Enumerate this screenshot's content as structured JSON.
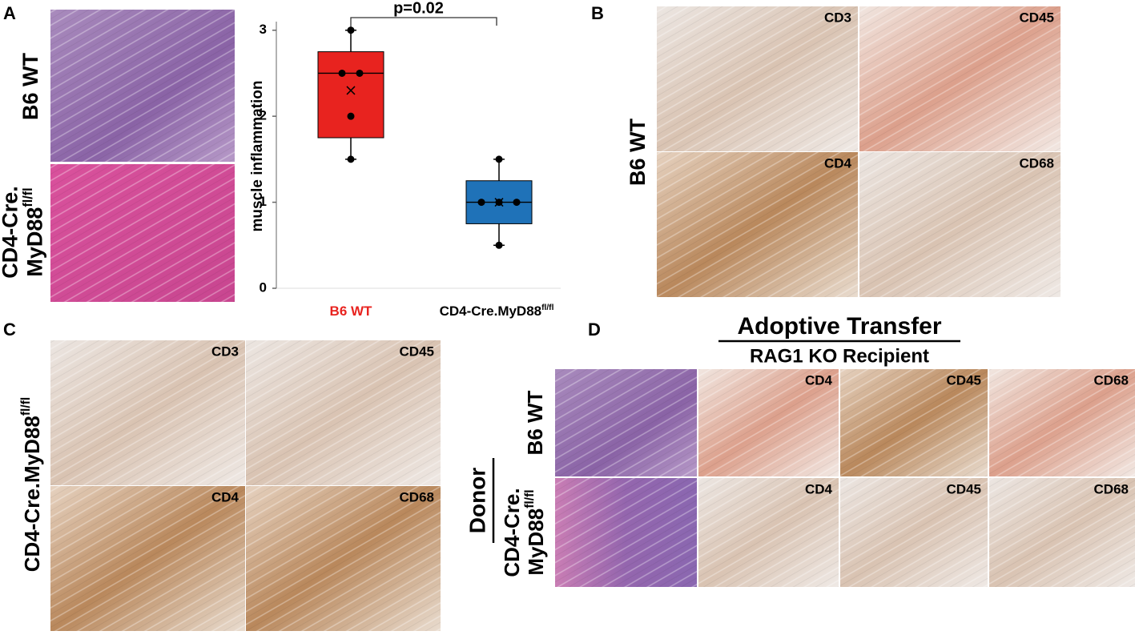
{
  "panels": {
    "a": {
      "letter": "A",
      "row_labels": [
        {
          "lines": [
            "B6 WT"
          ]
        },
        {
          "lines": [
            "CD4-Cre.",
            "MyD88"
          ],
          "sup": "fl/fl"
        }
      ]
    },
    "b": {
      "letter": "B",
      "row_label": {
        "lines": [
          "B6 WT"
        ]
      },
      "stains": [
        "CD3",
        "CD45",
        "CD4",
        "CD68"
      ]
    },
    "c": {
      "letter": "C",
      "row_label": {
        "lines": [
          "CD4-Cre.MyD88"
        ],
        "sup": "fl/fl"
      },
      "stains": [
        "CD3",
        "CD45",
        "CD4",
        "CD68"
      ]
    },
    "d": {
      "letter": "D",
      "title": "Adoptive Transfer",
      "subtitle": "RAG1 KO Recipient",
      "axis_label": "Donor",
      "rows": [
        {
          "label": {
            "lines": [
              "B6 WT"
            ]
          },
          "stains": [
            "CD4",
            "CD45",
            "CD68"
          ]
        },
        {
          "label": {
            "lines": [
              "CD4-Cre.",
              "MyD88"
            ],
            "sup": "fl/fl"
          },
          "stains": [
            "CD4",
            "CD45",
            "CD68"
          ]
        }
      ]
    }
  },
  "chart_data": {
    "type": "box",
    "ylabel": "muscle inflammation",
    "annotation": "p=0.02",
    "categories": [
      {
        "lines": [
          "B6 WT"
        ]
      },
      {
        "lines": [
          "CD4-Cre.MyD88"
        ],
        "sup": "fl/fl"
      }
    ],
    "category_colors": [
      "#e8231f",
      "#000000"
    ],
    "boxes": [
      {
        "color": "#e8231f",
        "min": 1.5,
        "q1": 1.75,
        "median": 2.5,
        "q3": 2.75,
        "max": 3,
        "mean": 2.3,
        "points": [
          3,
          2.5,
          2.5,
          2,
          1.5
        ]
      },
      {
        "color": "#1f72b8",
        "min": 0.5,
        "q1": 0.75,
        "median": 1,
        "q3": 1.25,
        "max": 1.5,
        "mean": 1,
        "points": [
          1.5,
          1,
          1,
          1,
          0.5
        ]
      }
    ],
    "ylim": [
      0,
      3.1
    ],
    "yticks": [
      0,
      1,
      2,
      3
    ]
  }
}
